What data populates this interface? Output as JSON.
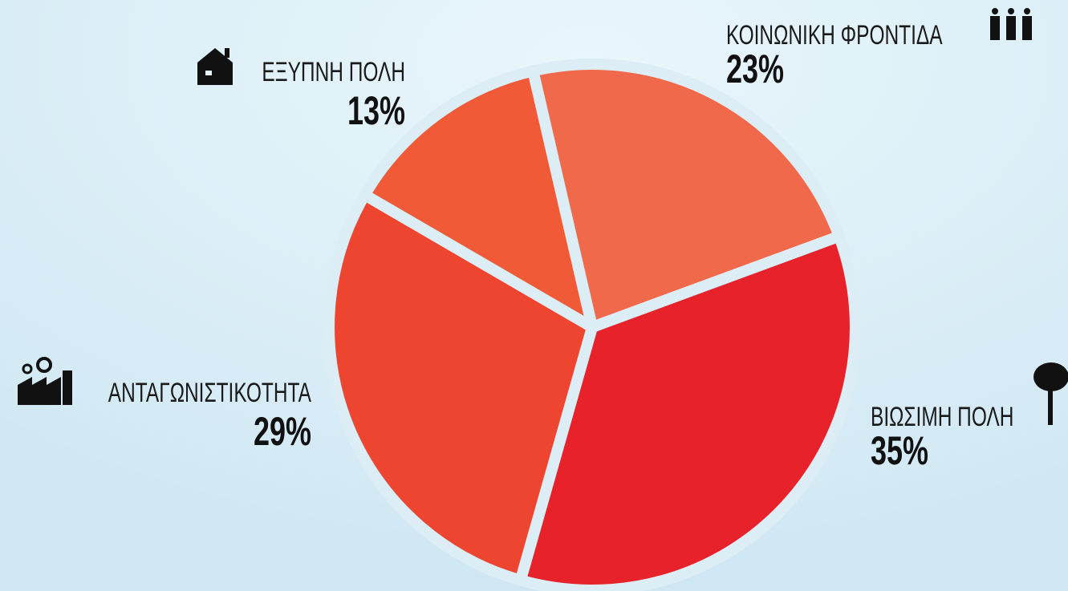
{
  "chart_data": {
    "type": "pie",
    "categories": [
      "ΚΟΙΝΩΝΙΚΗ ΦΡΟΝΤΙΔΑ",
      "ΒΙΩΣΙΜΗ ΠΟΛΗ",
      "ΑΝΤΑΓΩΝΙΣΤΙΚΟΤΗΤΑ",
      "ΕΞΥΠΝΗ ΠΟΛΗ"
    ],
    "values": [
      23,
      35,
      29,
      13
    ],
    "value_labels": [
      "23%",
      "35%",
      "29%",
      "13%"
    ],
    "colors": [
      "#f0694a",
      "#e8222a",
      "#ee4530",
      "#f05a36"
    ]
  }
}
